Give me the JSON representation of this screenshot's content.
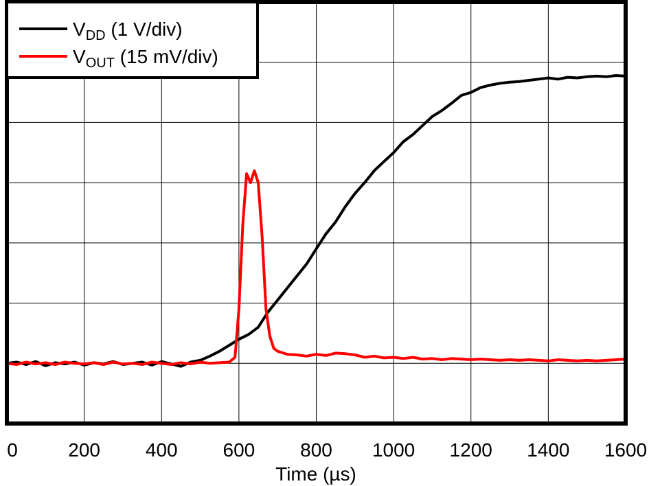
{
  "chart_data": {
    "type": "line",
    "title": "",
    "xlabel": "Time (µs)",
    "ylabel": "",
    "xlim": [
      0,
      1600
    ],
    "ylim": [
      0,
      7
    ],
    "x_ticks": [
      0,
      200,
      400,
      600,
      800,
      1000,
      1200,
      1400,
      1600
    ],
    "x_tick_labels": [
      "0",
      "200",
      "400",
      "600",
      "800",
      "1000",
      "1200",
      "1400",
      "1600"
    ],
    "y_gridlines": [
      1,
      2,
      3,
      4,
      5,
      6
    ],
    "y_tick_labels_shown": false,
    "grid": true,
    "legend_position": "top-left",
    "series": [
      {
        "name": "VDD (1 V/div)",
        "name_main": "V",
        "name_sub": "DD",
        "name_rest": " (1 V/div)",
        "color": "#000000",
        "x": [
          0,
          25,
          50,
          75,
          100,
          125,
          150,
          175,
          200,
          225,
          250,
          275,
          300,
          325,
          350,
          375,
          400,
          425,
          450,
          475,
          500,
          525,
          550,
          575,
          600,
          625,
          650,
          675,
          700,
          725,
          750,
          775,
          800,
          825,
          850,
          875,
          900,
          925,
          950,
          975,
          1000,
          1025,
          1050,
          1075,
          1100,
          1125,
          1150,
          1175,
          1200,
          1225,
          1250,
          1275,
          1300,
          1325,
          1350,
          1375,
          1400,
          1425,
          1450,
          1475,
          1500,
          1525,
          1550,
          1575,
          1600
        ],
        "y": [
          1.0,
          1.02,
          0.98,
          1.03,
          0.96,
          1.01,
          0.99,
          1.02,
          0.97,
          1.01,
          0.99,
          1.03,
          0.98,
          1.0,
          1.02,
          0.97,
          1.03,
          0.99,
          0.95,
          1.02,
          1.05,
          1.12,
          1.2,
          1.3,
          1.4,
          1.48,
          1.6,
          1.85,
          2.05,
          2.25,
          2.45,
          2.65,
          2.9,
          3.15,
          3.35,
          3.6,
          3.82,
          4.0,
          4.2,
          4.35,
          4.5,
          4.68,
          4.8,
          4.95,
          5.1,
          5.2,
          5.32,
          5.45,
          5.5,
          5.58,
          5.62,
          5.65,
          5.67,
          5.68,
          5.7,
          5.72,
          5.74,
          5.72,
          5.75,
          5.74,
          5.76,
          5.77,
          5.76,
          5.78,
          5.77
        ]
      },
      {
        "name": "VOUT (15 mV/div)",
        "name_main": "V",
        "name_sub": "OUT",
        "name_rest": " (15 mV/div)",
        "color": "#ff0000",
        "x": [
          0,
          25,
          50,
          75,
          100,
          125,
          150,
          175,
          200,
          225,
          250,
          275,
          300,
          325,
          350,
          375,
          400,
          425,
          450,
          475,
          500,
          525,
          550,
          575,
          590,
          600,
          610,
          620,
          630,
          640,
          650,
          660,
          670,
          680,
          690,
          700,
          725,
          750,
          775,
          800,
          825,
          850,
          875,
          900,
          925,
          950,
          975,
          1000,
          1025,
          1050,
          1075,
          1100,
          1125,
          1150,
          1175,
          1200,
          1225,
          1250,
          1275,
          1300,
          1325,
          1350,
          1375,
          1400,
          1425,
          1450,
          1475,
          1500,
          1525,
          1550,
          1575,
          1600
        ],
        "y": [
          1.0,
          0.98,
          1.02,
          0.99,
          1.01,
          0.98,
          1.02,
          1.0,
          0.99,
          1.01,
          0.98,
          1.02,
          0.99,
          1.0,
          0.98,
          1.02,
          1.0,
          0.98,
          1.01,
          0.99,
          1.02,
          1.0,
          1.01,
          1.02,
          1.1,
          1.9,
          3.3,
          4.15,
          4.0,
          4.2,
          4.0,
          3.1,
          1.9,
          1.45,
          1.25,
          1.2,
          1.15,
          1.14,
          1.12,
          1.15,
          1.13,
          1.17,
          1.16,
          1.14,
          1.1,
          1.12,
          1.09,
          1.1,
          1.08,
          1.1,
          1.07,
          1.08,
          1.06,
          1.08,
          1.07,
          1.06,
          1.07,
          1.06,
          1.05,
          1.06,
          1.05,
          1.06,
          1.05,
          1.04,
          1.06,
          1.05,
          1.04,
          1.05,
          1.04,
          1.05,
          1.06,
          1.07
        ]
      }
    ]
  }
}
